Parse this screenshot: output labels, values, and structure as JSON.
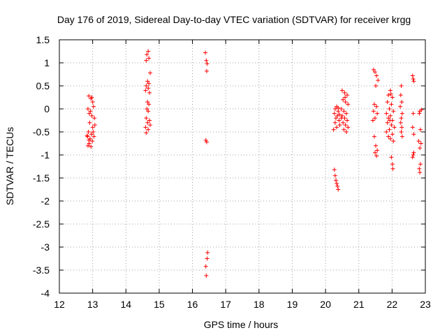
{
  "chart_data": {
    "type": "scatter",
    "title": "Day 176 of 2019, Sidereal Day-to-day VTEC variation (SDTVAR) for receiver krgg",
    "xlabel": "GPS time / hours",
    "ylabel": "SDTVAR / TECUs",
    "xlim": [
      12,
      23
    ],
    "ylim": [
      -4,
      1.5
    ],
    "x_ticks": [
      12,
      13,
      14,
      15,
      16,
      17,
      18,
      19,
      20,
      21,
      22,
      23
    ],
    "y_ticks": [
      -4,
      -3.5,
      -3,
      -2.5,
      -2,
      -1.5,
      -1,
      -0.5,
      0,
      0.5,
      1,
      1.5
    ],
    "grid": true,
    "marker": "+",
    "marker_color": "#ff0000",
    "clusters": [
      {
        "x0": 12.82,
        "x1": 13.08,
        "points": [
          [
            0.3,
            -0.1
          ],
          [
            0.25,
            0.28
          ],
          [
            0.5,
            0.22
          ],
          [
            0.7,
            0.15
          ],
          [
            0.15,
            0.0
          ],
          [
            0.45,
            -0.05
          ],
          [
            0.8,
            0.05
          ],
          [
            0.6,
            -0.15
          ],
          [
            0.9,
            -0.2
          ],
          [
            0.35,
            -0.3
          ],
          [
            0.7,
            -0.4
          ],
          [
            0.2,
            -0.5
          ],
          [
            0.55,
            -0.55
          ],
          [
            0.85,
            -0.6
          ],
          [
            0.1,
            -0.6
          ],
          [
            0.4,
            -0.65
          ],
          [
            0.65,
            -0.7
          ],
          [
            0.3,
            -0.75
          ],
          [
            0.15,
            -0.8
          ],
          [
            0.5,
            -0.82
          ],
          [
            0.75,
            -0.5
          ],
          [
            0.95,
            -0.35
          ],
          [
            0.6,
            0.25
          ],
          [
            0.05,
            -0.58
          ],
          [
            0.25,
            -0.68
          ]
        ]
      },
      {
        "x0": 14.55,
        "x1": 14.75,
        "points": [
          [
            0.6,
            1.25
          ],
          [
            0.4,
            1.18
          ],
          [
            0.7,
            1.1
          ],
          [
            0.3,
            1.05
          ],
          [
            0.9,
            0.78
          ],
          [
            0.5,
            0.6
          ],
          [
            0.7,
            0.55
          ],
          [
            0.3,
            0.5
          ],
          [
            0.6,
            0.45
          ],
          [
            0.2,
            0.4
          ],
          [
            0.8,
            0.35
          ],
          [
            0.5,
            0.15
          ],
          [
            0.7,
            0.1
          ],
          [
            0.4,
            0.0
          ],
          [
            0.6,
            -0.05
          ],
          [
            0.3,
            -0.2
          ],
          [
            0.8,
            -0.25
          ],
          [
            0.5,
            -0.3
          ],
          [
            0.2,
            -0.4
          ],
          [
            0.6,
            -0.45
          ],
          [
            0.3,
            -0.52
          ],
          [
            0.9,
            -0.35
          ]
        ]
      },
      {
        "x0": 16.35,
        "x1": 16.48,
        "points": [
          [
            0.3,
            1.22
          ],
          [
            0.5,
            1.05
          ],
          [
            0.7,
            0.98
          ],
          [
            0.6,
            0.82
          ],
          [
            0.4,
            -0.68
          ],
          [
            0.6,
            -0.72
          ],
          [
            0.8,
            -3.12
          ],
          [
            0.7,
            -3.25
          ],
          [
            0.4,
            -3.42
          ],
          [
            0.5,
            -3.62
          ]
        ]
      },
      {
        "x0": 20.22,
        "x1": 20.45,
        "points": [
          [
            0.2,
            -1.32
          ],
          [
            0.3,
            -1.45
          ],
          [
            0.4,
            -1.55
          ],
          [
            0.5,
            -1.62
          ],
          [
            0.6,
            -1.68
          ],
          [
            0.7,
            -1.75
          ],
          [
            0.5,
            0.05
          ],
          [
            0.3,
            0.0
          ],
          [
            0.7,
            -0.05
          ],
          [
            0.2,
            -0.1
          ],
          [
            0.6,
            -0.15
          ],
          [
            0.4,
            -0.2
          ],
          [
            0.8,
            -0.25
          ],
          [
            0.3,
            -0.3
          ],
          [
            0.9,
            -0.35
          ],
          [
            0.5,
            -0.4
          ],
          [
            0.1,
            -0.45
          ],
          [
            0.7,
            0.02
          ],
          [
            0.85,
            -0.12
          ]
        ]
      },
      {
        "x0": 20.45,
        "x1": 20.7,
        "points": [
          [
            0.2,
            0.4
          ],
          [
            0.5,
            0.35
          ],
          [
            0.8,
            0.3
          ],
          [
            0.3,
            0.2
          ],
          [
            0.6,
            0.15
          ],
          [
            0.9,
            0.1
          ],
          [
            0.1,
            0.0
          ],
          [
            0.4,
            -0.05
          ],
          [
            0.7,
            -0.1
          ],
          [
            0.2,
            -0.15
          ],
          [
            0.5,
            -0.2
          ],
          [
            0.8,
            -0.25
          ],
          [
            0.3,
            -0.3
          ],
          [
            0.6,
            -0.35
          ],
          [
            0.9,
            -0.4
          ],
          [
            0.4,
            -0.45
          ],
          [
            0.7,
            -0.5
          ],
          [
            0.1,
            -0.2
          ],
          [
            0.55,
            0.25
          ]
        ]
      },
      {
        "x0": 21.4,
        "x1": 21.62,
        "points": [
          [
            0.2,
            0.85
          ],
          [
            0.4,
            0.8
          ],
          [
            0.6,
            0.72
          ],
          [
            0.8,
            0.62
          ],
          [
            0.5,
            0.5
          ],
          [
            0.3,
            0.1
          ],
          [
            0.6,
            0.05
          ],
          [
            0.2,
            -0.05
          ],
          [
            0.7,
            -0.1
          ],
          [
            0.4,
            -0.2
          ],
          [
            0.1,
            -0.25
          ],
          [
            0.3,
            -0.6
          ],
          [
            0.5,
            -0.8
          ],
          [
            0.7,
            -0.9
          ],
          [
            0.4,
            -0.95
          ],
          [
            0.6,
            -1.02
          ]
        ]
      },
      {
        "x0": 21.8,
        "x1": 22.1,
        "points": [
          [
            0.5,
            0.4
          ],
          [
            0.3,
            0.3
          ],
          [
            0.7,
            0.25
          ],
          [
            0.2,
            0.15
          ],
          [
            0.6,
            0.1
          ],
          [
            0.4,
            0.0
          ],
          [
            0.8,
            -0.05
          ],
          [
            0.1,
            -0.1
          ],
          [
            0.5,
            -0.15
          ],
          [
            0.3,
            -0.2
          ],
          [
            0.7,
            -0.25
          ],
          [
            0.2,
            -0.3
          ],
          [
            0.6,
            -0.35
          ],
          [
            0.9,
            -0.4
          ],
          [
            0.4,
            -0.45
          ],
          [
            0.1,
            -0.5
          ],
          [
            0.7,
            -0.55
          ],
          [
            0.3,
            -0.6
          ],
          [
            0.5,
            -0.65
          ],
          [
            0.8,
            -0.7
          ],
          [
            0.6,
            -1.05
          ],
          [
            0.7,
            -1.2
          ],
          [
            0.75,
            -1.3
          ],
          [
            0.45,
            -0.25
          ],
          [
            0.55,
            0.32
          ]
        ]
      },
      {
        "x0": 22.2,
        "x1": 22.35,
        "points": [
          [
            0.5,
            0.5
          ],
          [
            0.4,
            0.3
          ],
          [
            0.6,
            0.15
          ],
          [
            0.3,
            0.05
          ],
          [
            0.7,
            -0.1
          ],
          [
            0.5,
            -0.2
          ],
          [
            0.4,
            -0.3
          ],
          [
            0.6,
            -0.4
          ],
          [
            0.5,
            -0.5
          ],
          [
            0.7,
            -0.6
          ]
        ]
      },
      {
        "x0": 22.55,
        "x1": 22.72,
        "points": [
          [
            0.4,
            0.72
          ],
          [
            0.5,
            0.65
          ],
          [
            0.6,
            0.6
          ],
          [
            0.5,
            -0.1
          ],
          [
            0.4,
            -0.4
          ],
          [
            0.6,
            -0.55
          ],
          [
            0.5,
            -1.0
          ],
          [
            0.4,
            -1.05
          ],
          [
            0.6,
            -0.95
          ]
        ]
      },
      {
        "x0": 22.75,
        "x1": 22.92,
        "points": [
          [
            0.5,
            -0.05
          ],
          [
            0.4,
            -0.1
          ],
          [
            0.6,
            -0.45
          ],
          [
            0.3,
            -0.7
          ],
          [
            0.7,
            -0.75
          ],
          [
            0.5,
            -0.85
          ],
          [
            0.6,
            -1.2
          ],
          [
            0.4,
            -1.3
          ],
          [
            0.5,
            -1.38
          ],
          [
            0.8,
            -0.02
          ]
        ]
      }
    ]
  }
}
